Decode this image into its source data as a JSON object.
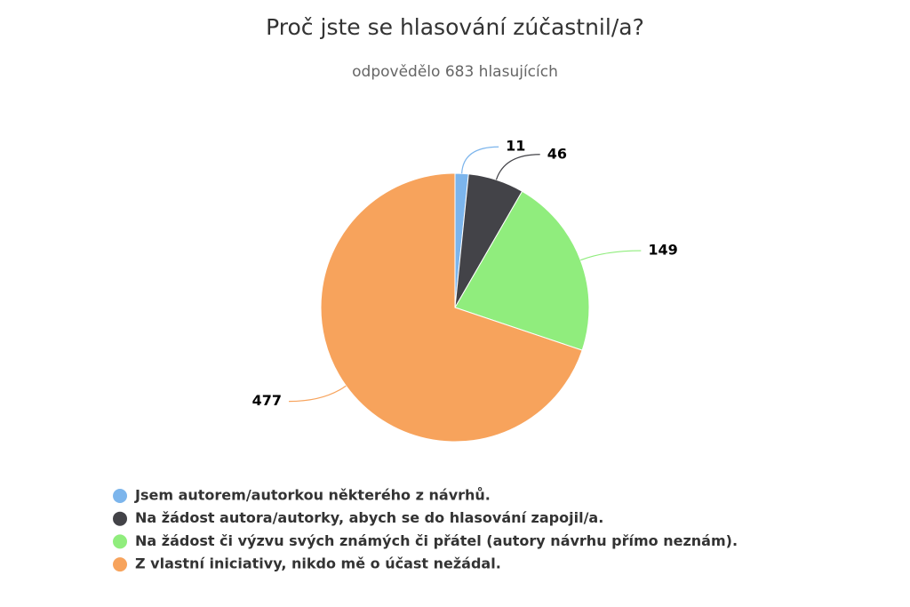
{
  "chart_data": {
    "type": "pie",
    "title": "Proč jste se hlasování zúčastnil/a?",
    "subtitle": "odpovědělo 683 hlasujících",
    "categories": [
      "Jsem autorem/autorkou některého z návrhů.",
      "Na žádost autora/autorky, abych se do hlasování zapojil/a.",
      "Na žádost či výzvu svých známých či přátel (autory návrhu přímo neznám).",
      "Z vlastní iniciativy, nikdo mě o účast nežádal."
    ],
    "values": [
      11,
      46,
      149,
      477
    ],
    "colors": [
      "#7cb5ec",
      "#434348",
      "#90ed7d",
      "#f7a35c"
    ],
    "legend": "bottom"
  }
}
